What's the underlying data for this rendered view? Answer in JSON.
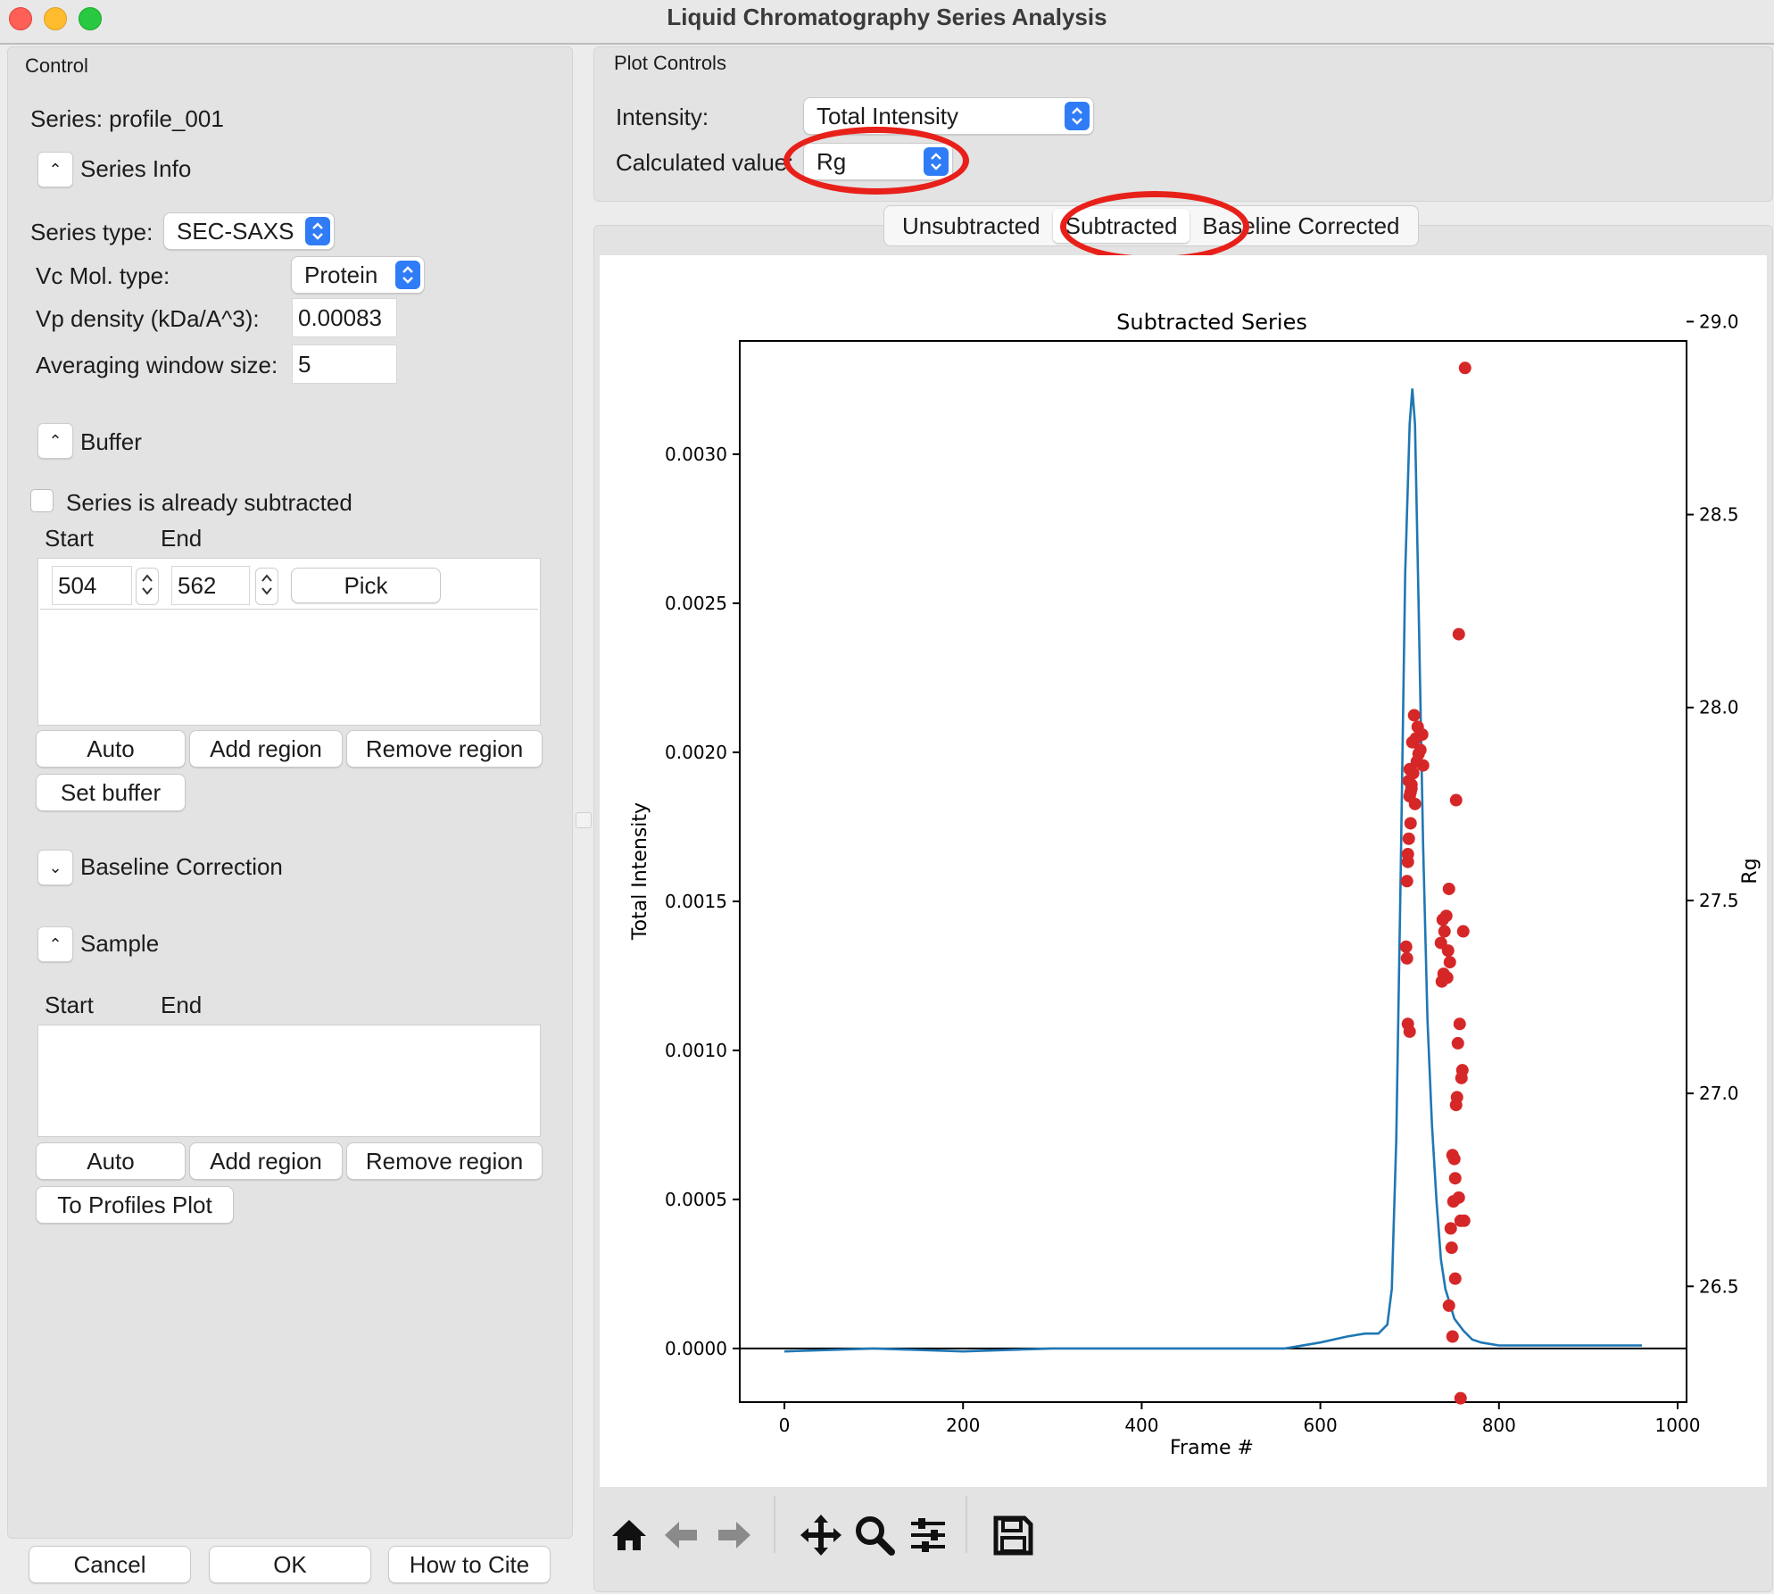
{
  "window": {
    "title": "Liquid Chromatography Series Analysis"
  },
  "control": {
    "group_title": "Control",
    "series_label": "Series: profile_001",
    "series_info_title": "Series Info",
    "series_type_label": "Series type:",
    "series_type_value": "SEC-SAXS",
    "vc_mol_type_label": "Vc Mol. type:",
    "vc_mol_type_value": "Protein",
    "vp_density_label": "Vp density (kDa/A^3):",
    "vp_density_value": "0.00083",
    "avg_window_label": "Averaging window size:",
    "avg_window_value": "5",
    "buffer_title": "Buffer",
    "already_subtracted_label": "Series is already subtracted",
    "buffer_start_header": "Start",
    "buffer_end_header": "End",
    "buffer_range": {
      "start": "504",
      "end": "562",
      "pick_label": "Pick"
    },
    "auto_label": "Auto",
    "add_region_label": "Add region",
    "remove_region_label": "Remove region",
    "set_buffer_label": "Set buffer",
    "baseline_title": "Baseline Correction",
    "sample_title": "Sample",
    "sample_start_header": "Start",
    "sample_end_header": "End",
    "to_profiles_label": "To Profiles Plot"
  },
  "footer": {
    "cancel": "Cancel",
    "ok": "OK",
    "cite": "How to Cite"
  },
  "plot_controls": {
    "group_title": "Plot Controls",
    "intensity_label": "Intensity:",
    "intensity_value": "Total Intensity",
    "calculated_label": "Calculated value:",
    "calculated_value": "Rg"
  },
  "tabs": [
    "Unsubtracted",
    "Subtracted",
    "Baseline Corrected"
  ],
  "selected_tab": "Subtracted",
  "colors": {
    "accent": "#2f7cf6",
    "annotation": "#e8201a",
    "line": "#1f77b4",
    "scatter": "#d62728"
  },
  "toolbar_icons": [
    "home-icon",
    "back-arrow-icon",
    "forward-arrow-icon",
    "pan-icon",
    "zoom-icon",
    "configure-icon",
    "save-icon"
  ],
  "chart_data": {
    "type": "line",
    "title": "Subtracted Series",
    "xlabel": "Frame #",
    "ylabel": "Total Intensity",
    "y2label": "Rg",
    "xlim": [
      -50,
      1010
    ],
    "ylim": [
      -0.00018,
      0.00338
    ],
    "y2lim": [
      26.2,
      28.95
    ],
    "x_ticks": [
      "0",
      "200",
      "400",
      "600",
      "800",
      "1000"
    ],
    "x_tick_values": [
      0,
      200,
      400,
      600,
      800,
      1000
    ],
    "y_ticks": [
      "0.0000",
      "0.0005",
      "0.0010",
      "0.0015",
      "0.0020",
      "0.0025",
      "0.0030"
    ],
    "y_tick_values": [
      0,
      0.0005,
      0.001,
      0.0015,
      0.002,
      0.0025,
      0.003
    ],
    "y2_ticks": [
      "26.5",
      "27.0",
      "27.5",
      "28.0",
      "28.5",
      "29.0"
    ],
    "y2_tick_values": [
      26.5,
      27.0,
      27.5,
      28.0,
      28.5,
      29.0
    ],
    "series": [
      {
        "kind": "line",
        "axis": "left",
        "x": [
          0,
          100,
          200,
          300,
          400,
          500,
          560,
          600,
          630,
          650,
          665,
          675,
          680,
          685,
          690,
          695,
          700,
          703,
          706,
          710,
          715,
          720,
          725,
          730,
          735,
          740,
          745,
          750,
          760,
          770,
          780,
          800,
          850,
          900,
          960
        ],
        "y": [
          -1e-05,
          0.0,
          -1e-05,
          0.0,
          0.0,
          0.0,
          0.0,
          2e-05,
          4e-05,
          5e-05,
          5e-05,
          8e-05,
          0.0002,
          0.0007,
          0.0016,
          0.0026,
          0.0031,
          0.00322,
          0.0031,
          0.0025,
          0.0017,
          0.0011,
          0.00075,
          0.0005,
          0.0003,
          0.0002,
          0.00015,
          0.0001,
          6e-05,
          3e-05,
          2e-05,
          1e-05,
          1e-05,
          1e-05,
          1e-05
        ]
      },
      {
        "kind": "scatter",
        "axis": "right",
        "x": [
          762,
          755,
          752,
          700,
          702,
          704,
          706,
          708,
          703,
          705,
          707,
          709,
          701,
          699,
          698,
          701,
          710,
          712,
          715,
          714,
          700,
          698,
          697,
          699,
          702,
          744,
          737,
          735,
          739,
          741,
          743,
          745,
          738,
          736,
          742,
          697,
          696,
          698,
          700,
          760,
          756,
          754,
          759,
          758,
          753,
          752,
          750,
          748,
          749,
          751,
          755,
          757,
          761,
          746,
          747,
          751,
          744,
          748,
          757
        ],
        "y": [
          28.88,
          28.19,
          27.76,
          27.84,
          27.79,
          27.83,
          27.75,
          27.86,
          27.91,
          27.98,
          27.92,
          27.95,
          27.7,
          27.66,
          27.62,
          27.78,
          27.88,
          27.89,
          27.85,
          27.93,
          27.77,
          27.6,
          27.55,
          27.81,
          27.8,
          27.53,
          27.45,
          27.39,
          27.42,
          27.46,
          27.37,
          27.34,
          27.31,
          27.29,
          27.3,
          27.35,
          27.38,
          27.18,
          27.16,
          27.42,
          27.18,
          27.13,
          27.06,
          27.04,
          26.99,
          26.97,
          26.83,
          26.84,
          26.72,
          26.78,
          26.73,
          26.67,
          26.67,
          26.65,
          26.6,
          26.52,
          26.45,
          26.37,
          26.21
        ]
      }
    ]
  }
}
